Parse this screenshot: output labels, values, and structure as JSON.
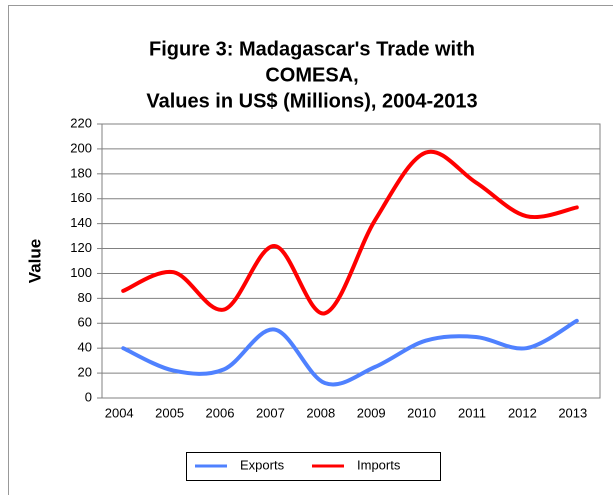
{
  "chart_data": {
    "type": "line",
    "title": [
      "Figure 3: Madagascar's Trade with",
      "COMESA,",
      "Values in US$ (Millions), 2004-2013"
    ],
    "y_label": "Value",
    "categories": [
      "2004",
      "2005",
      "2006",
      "2007",
      "2008",
      "2009",
      "2010",
      "2011",
      "2012",
      "2013"
    ],
    "series": [
      {
        "name": "Exports",
        "color": "#4f81ff",
        "values": [
          40,
          22,
          23,
          55,
          12,
          25,
          46,
          49,
          40,
          62
        ]
      },
      {
        "name": "Imports",
        "color": "#ff0000",
        "values": [
          86,
          101,
          71,
          122,
          68,
          143,
          197,
          173,
          146,
          153
        ]
      }
    ],
    "ylim": [
      0,
      220
    ],
    "yticks": [
      0,
      20,
      40,
      60,
      80,
      100,
      120,
      140,
      160,
      180,
      200,
      220
    ],
    "grid": true,
    "legend": "bottom",
    "smooth": true
  }
}
